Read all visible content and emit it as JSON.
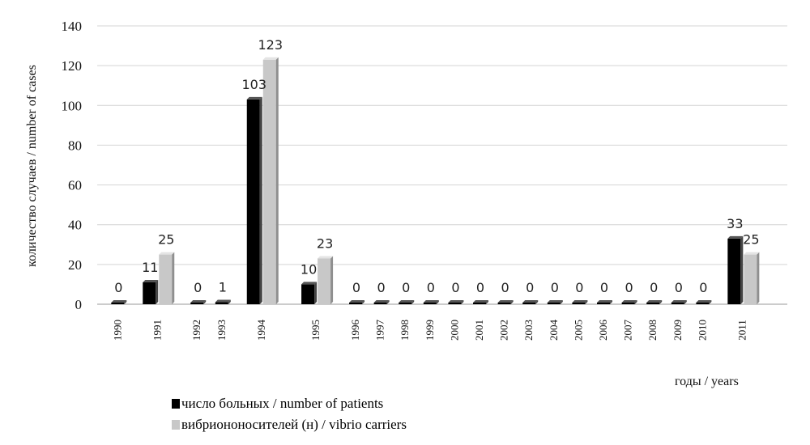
{
  "chart_data": {
    "type": "bar",
    "title": "",
    "xlabel": "годы / years",
    "ylabel": "количество случаев / number of cases",
    "ylim": [
      0,
      140
    ],
    "yticks": [
      0,
      20,
      40,
      60,
      80,
      100,
      120,
      140
    ],
    "grid": true,
    "legend_position": "bottom-left",
    "categories": [
      "1990",
      "1991",
      "1992",
      "1993",
      "1994",
      "1995",
      "1996",
      "1997",
      "1998",
      "1999",
      "2000",
      "2001",
      "2002",
      "2003",
      "2004",
      "2005",
      "2006",
      "2007",
      "2008",
      "2009",
      "2010",
      "2011"
    ],
    "series": [
      {
        "name": "число больных / number of patients",
        "color": "#000000",
        "values": [
          0,
          11,
          0,
          1,
          103,
          10,
          0,
          0,
          0,
          0,
          0,
          0,
          0,
          0,
          0,
          0,
          0,
          0,
          0,
          0,
          0,
          33
        ]
      },
      {
        "name": "вибриононосителей (н) / vibrio carriers",
        "color": "#c8c8c8",
        "values": [
          0,
          25,
          0,
          0,
          123,
          23,
          0,
          0,
          0,
          0,
          0,
          0,
          0,
          0,
          0,
          0,
          0,
          0,
          0,
          0,
          0,
          25
        ]
      }
    ],
    "data_labels": [
      "0",
      "11",
      "25",
      "0",
      "1",
      "103",
      "123",
      "10",
      "23",
      "0",
      "0",
      "0",
      "0",
      "0",
      "0",
      "0",
      "0",
      "0",
      "0",
      "0",
      "0",
      "0",
      "0",
      "0",
      "33",
      "25"
    ]
  }
}
